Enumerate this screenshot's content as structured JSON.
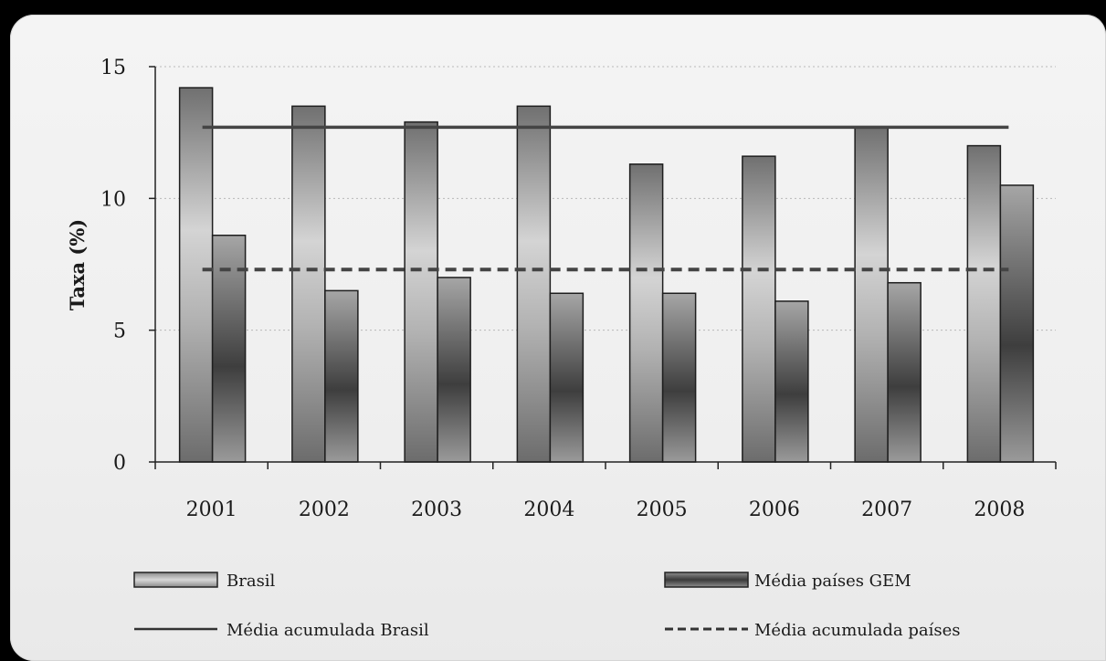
{
  "chart_data": {
    "type": "bar",
    "categories": [
      "2001",
      "2002",
      "2003",
      "2004",
      "2005",
      "2006",
      "2007",
      "2008"
    ],
    "series": [
      {
        "name": "Brasil",
        "values": [
          14.2,
          13.5,
          12.9,
          13.5,
          11.3,
          11.6,
          12.7,
          12.0
        ],
        "style": "light-gradient"
      },
      {
        "name": "Média países GEM",
        "values": [
          8.6,
          6.5,
          7.0,
          6.4,
          6.4,
          6.1,
          6.8,
          10.5
        ],
        "style": "dark-gradient"
      }
    ],
    "reference_lines": [
      {
        "name": "Média acumulada Brasil",
        "value": 12.7,
        "style": "solid"
      },
      {
        "name": "Média acumulada países",
        "value": 7.3,
        "style": "dashed"
      }
    ],
    "ylabel": "Taxa  (%)",
    "ylim": [
      0,
      15
    ],
    "yticks": [
      "0",
      "5",
      "10",
      "15"
    ],
    "grid": "horizontal dotted",
    "legend_position": "bottom"
  }
}
